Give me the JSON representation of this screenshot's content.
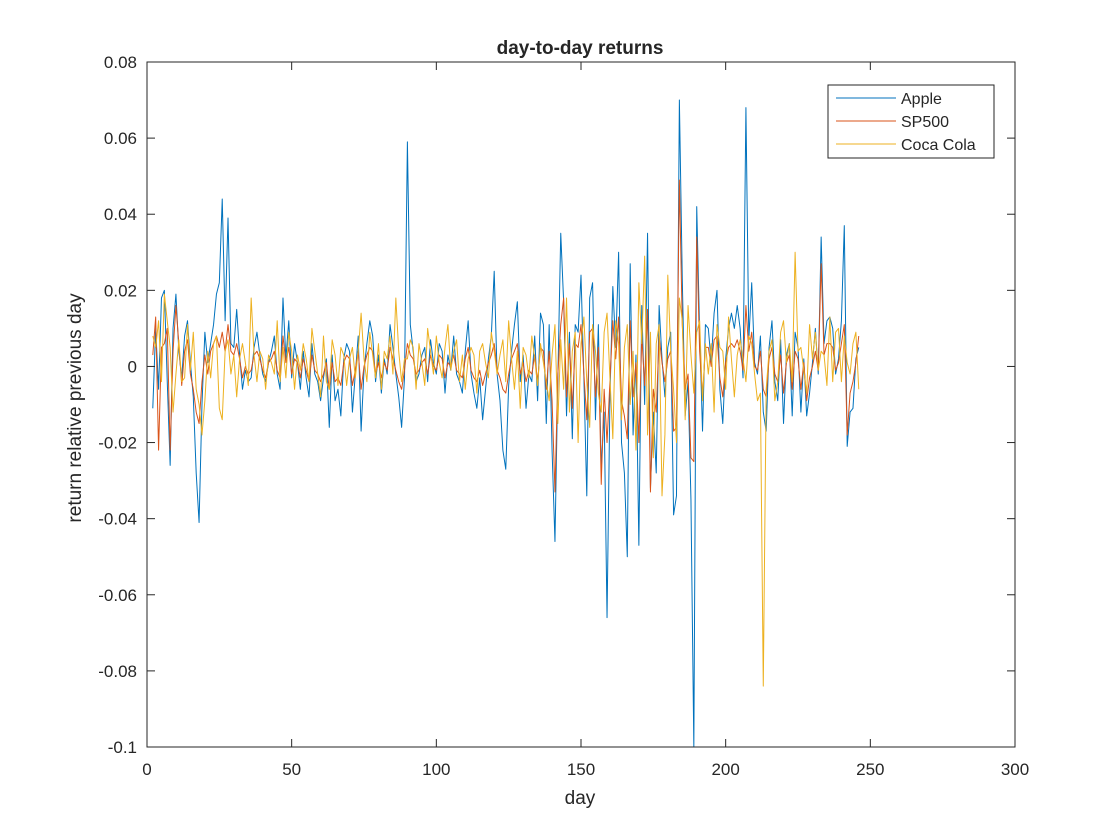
{
  "chart_data": {
    "type": "line",
    "title": "day-to-day returns",
    "xlabel": "day",
    "ylabel": "return relative previous day",
    "xlim": [
      0,
      300
    ],
    "ylim": [
      -0.1,
      0.08
    ],
    "xticks": [
      0,
      50,
      100,
      150,
      200,
      250,
      300
    ],
    "yticks": [
      -0.1,
      -0.08,
      -0.06,
      -0.04,
      -0.02,
      0,
      0.02,
      0.04,
      0.06,
      0.08
    ],
    "xtick_labels": [
      "0",
      "50",
      "100",
      "150",
      "200",
      "250",
      "300"
    ],
    "ytick_labels": [
      "-0.1",
      "-0.08",
      "-0.06",
      "-0.04",
      "-0.02",
      "0",
      "0.02",
      "0.04",
      "0.06",
      "0.08"
    ],
    "grid": false,
    "legend_position": "top-right",
    "x_start": 2,
    "series": [
      {
        "name": "Apple",
        "color": "#0072BD",
        "values": [
          -0.011,
          0.01,
          -0.006,
          0.018,
          0.02,
          -0.004,
          -0.026,
          0.01,
          0.019,
          0.004,
          -0.003,
          0.008,
          0.012,
          0.001,
          -0.008,
          -0.028,
          -0.041,
          -0.01,
          0.009,
          0.001,
          0.006,
          0.011,
          0.019,
          0.022,
          0.044,
          0.012,
          0.039,
          0.006,
          0.005,
          0.015,
          0.003,
          -0.006,
          -0.001,
          -0.004,
          -0.003,
          0.005,
          0.009,
          0.003,
          -0.002,
          -0.004,
          0.001,
          0.004,
          0.008,
          -0.002,
          -0.006,
          0.018,
          0.002,
          0.012,
          -0.003,
          0.006,
          0.001,
          -0.006,
          0.004,
          -0.003,
          -0.008,
          0.006,
          -0.002,
          -0.004,
          -0.009,
          -0.003,
          0.002,
          -0.016,
          0.003,
          -0.009,
          -0.006,
          -0.013,
          0.002,
          0.006,
          0.004,
          -0.012,
          -0.002,
          0.008,
          -0.017,
          -0.001,
          0.006,
          0.012,
          0.008,
          -0.004,
          0.003,
          -0.007,
          0.002,
          -0.002,
          0.011,
          0.005,
          -0.002,
          -0.008,
          -0.016,
          -0.003,
          0.059,
          0.011,
          0.004,
          -0.004,
          -0.002,
          0.003,
          0.005,
          -0.004,
          0.007,
          0.001,
          -0.002,
          0.006,
          0.004,
          -0.007,
          0.003,
          -0.001,
          0.008,
          -0.002,
          -0.004,
          -0.007,
          0.004,
          0.012,
          -0.002,
          -0.007,
          -0.011,
          -0.003,
          -0.014,
          -0.006,
          0.002,
          0.008,
          0.025,
          -0.002,
          -0.009,
          -0.022,
          -0.027,
          -0.005,
          0.004,
          0.011,
          0.017,
          -0.004,
          0.003,
          -0.011,
          -0.002,
          -0.004,
          0.008,
          -0.009,
          0.014,
          0.011,
          -0.015,
          0.011,
          -0.022,
          -0.046,
          -0.003,
          0.035,
          0.017,
          -0.013,
          0.009,
          -0.019,
          0.011,
          0.009,
          0.024,
          -0.003,
          -0.034,
          0.018,
          0.022,
          -0.014,
          0.011,
          -0.027,
          -0.012,
          -0.066,
          -0.008,
          0.021,
          0.005,
          0.03,
          -0.02,
          -0.028,
          -0.05,
          0.027,
          -0.018,
          0.003,
          -0.047,
          0.016,
          -0.01,
          0.035,
          -0.032,
          -0.012,
          -0.028,
          0.016,
          0.002,
          -0.008,
          0.005,
          0.009,
          -0.039,
          -0.034,
          0.07,
          0.023,
          -0.013,
          -0.004,
          -0.035,
          -0.1,
          0.042,
          0.009,
          -0.017,
          0.011,
          0.01,
          0.001,
          0.014,
          0.02,
          -0.006,
          -0.015,
          0.002,
          0.01,
          0.014,
          0.01,
          0.016,
          0.01,
          -0.003,
          0.068,
          0.007,
          0.022,
          0.001,
          -0.002,
          0.008,
          -0.012,
          -0.017,
          0.005,
          0.012,
          -0.004,
          -0.009,
          0.007,
          -0.015,
          0.003,
          0.006,
          -0.013,
          0.009,
          0.005,
          -0.012,
          0.002,
          -0.013,
          -0.007,
          0.001,
          0.01,
          -0.002,
          0.034,
          0.006,
          0.012,
          0.013,
          0.01,
          -0.002,
          0.002,
          0.012,
          0.037,
          -0.021,
          -0.012,
          -0.011,
          0.002,
          0.005
        ]
      },
      {
        "name": "SP500",
        "color": "#D95319",
        "values": [
          0.003,
          0.013,
          -0.022,
          0.005,
          0.006,
          0.01,
          -0.022,
          0.004,
          0.016,
          0.006,
          -0.005,
          0.004,
          0.007,
          -0.002,
          -0.006,
          -0.012,
          -0.015,
          -0.004,
          0.003,
          -0.002,
          0.004,
          0.006,
          0.008,
          0.005,
          0.009,
          0.004,
          0.011,
          0.004,
          0.003,
          0.006,
          0.002,
          -0.003,
          0.0,
          -0.002,
          -0.001,
          0.003,
          0.004,
          0.002,
          -0.001,
          -0.003,
          0.001,
          0.002,
          0.004,
          -0.001,
          -0.003,
          0.008,
          0.001,
          0.005,
          -0.002,
          0.002,
          0.001,
          -0.003,
          0.002,
          -0.001,
          -0.004,
          0.003,
          -0.001,
          -0.002,
          -0.004,
          -0.002,
          0.001,
          -0.006,
          0.001,
          -0.004,
          -0.003,
          -0.005,
          0.001,
          0.003,
          0.002,
          -0.005,
          -0.001,
          0.004,
          -0.006,
          0.0,
          0.003,
          0.005,
          0.004,
          -0.002,
          0.001,
          -0.003,
          0.001,
          -0.001,
          0.005,
          0.002,
          -0.001,
          -0.004,
          -0.006,
          -0.001,
          0.006,
          0.003,
          0.002,
          -0.002,
          -0.001,
          0.001,
          0.002,
          -0.002,
          0.003,
          0.0,
          -0.001,
          0.003,
          0.002,
          -0.003,
          0.001,
          0.0,
          0.003,
          -0.001,
          -0.002,
          -0.003,
          0.002,
          0.005,
          -0.001,
          -0.003,
          -0.004,
          -0.001,
          -0.005,
          -0.002,
          0.001,
          0.003,
          0.006,
          -0.001,
          -0.003,
          -0.006,
          -0.007,
          -0.002,
          0.002,
          0.004,
          0.006,
          -0.002,
          0.001,
          -0.004,
          -0.001,
          -0.002,
          0.003,
          -0.004,
          0.005,
          0.004,
          -0.006,
          0.004,
          -0.009,
          -0.033,
          -0.002,
          0.011,
          0.018,
          -0.008,
          0.006,
          -0.011,
          0.006,
          0.005,
          0.011,
          -0.002,
          -0.014,
          0.009,
          0.01,
          -0.008,
          0.005,
          -0.031,
          -0.006,
          -0.02,
          -0.004,
          0.012,
          0.002,
          0.013,
          -0.009,
          -0.013,
          -0.019,
          0.012,
          -0.008,
          0.001,
          -0.02,
          0.008,
          -0.005,
          0.015,
          -0.033,
          -0.006,
          -0.012,
          0.008,
          0.001,
          -0.004,
          0.002,
          0.004,
          -0.017,
          -0.016,
          0.049,
          0.011,
          -0.006,
          -0.002,
          -0.024,
          -0.025,
          0.034,
          0.004,
          -0.008,
          0.005,
          0.005,
          0.0,
          0.007,
          0.008,
          -0.003,
          -0.008,
          0.001,
          0.005,
          0.006,
          0.005,
          0.007,
          0.004,
          -0.001,
          0.016,
          0.004,
          0.009,
          0.0,
          -0.001,
          0.004,
          -0.006,
          -0.008,
          0.002,
          0.005,
          -0.002,
          -0.004,
          0.003,
          -0.007,
          0.001,
          0.003,
          -0.006,
          0.004,
          0.002,
          -0.006,
          0.001,
          -0.009,
          -0.003,
          0.0,
          0.004,
          -0.001,
          0.027,
          0.003,
          0.006,
          0.006,
          0.005,
          -0.001,
          0.001,
          0.006,
          0.011,
          -0.018,
          -0.007,
          -0.004,
          0.001,
          0.008
        ]
      },
      {
        "name": "Coca Cola",
        "color": "#EDB120",
        "values": [
          0.008,
          0.005,
          0.012,
          -0.004,
          0.019,
          0.012,
          0.005,
          -0.012,
          -0.002,
          0.007,
          -0.004,
          -0.003,
          0.011,
          -0.001,
          0.009,
          -0.006,
          -0.01,
          -0.018,
          -0.009,
          0.004,
          -0.003,
          0.006,
          0.008,
          -0.011,
          -0.014,
          0.004,
          0.007,
          -0.002,
          0.003,
          -0.008,
          0.002,
          0.006,
          0.001,
          -0.005,
          0.018,
          0.003,
          -0.004,
          0.004,
          0.002,
          -0.006,
          0.003,
          0.001,
          -0.002,
          0.012,
          -0.004,
          0.005,
          -0.003,
          0.009,
          0.004,
          -0.006,
          0.003,
          -0.001,
          0.006,
          0.002,
          -0.004,
          0.01,
          0.004,
          -0.002,
          -0.008,
          0.008,
          -0.004,
          -0.006,
          0.007,
          0.003,
          -0.005,
          0.005,
          0.003,
          -0.005,
          0.002,
          0.005,
          -0.003,
          0.004,
          0.014,
          0.002,
          -0.004,
          0.009,
          0.003,
          -0.003,
          0.006,
          -0.006,
          0.004,
          0.002,
          0.008,
          -0.002,
          0.018,
          0.004,
          -0.004,
          0.002,
          0.002,
          0.007,
          0.005,
          -0.006,
          0.006,
          0.001,
          -0.005,
          0.01,
          0.004,
          -0.002,
          0.008,
          0.001,
          -0.003,
          0.005,
          0.011,
          -0.001,
          0.004,
          0.007,
          -0.004,
          0.003,
          -0.006,
          0.002,
          0.005,
          0.003,
          -0.007,
          0.004,
          0.006,
          0.001,
          -0.003,
          0.009,
          0.004,
          -0.002,
          0.003,
          0.007,
          -0.004,
          0.012,
          0.002,
          -0.006,
          0.004,
          -0.011,
          0.005,
          0.003,
          -0.003,
          0.008,
          0.002,
          -0.005,
          0.006,
          0.001,
          -0.004,
          -0.009,
          0.003,
          0.011,
          -0.015,
          0.007,
          -0.006,
          0.018,
          -0.012,
          0.004,
          0.009,
          -0.02,
          0.006,
          0.013,
          -0.004,
          -0.016,
          0.011,
          0.004,
          -0.007,
          -0.012,
          0.009,
          0.014,
          -0.003,
          -0.019,
          0.012,
          0.006,
          -0.014,
          0.005,
          0.011,
          -0.01,
          0.004,
          -0.022,
          0.022,
          0.006,
          0.029,
          -0.018,
          0.009,
          -0.024,
          0.006,
          0.011,
          -0.034,
          -0.018,
          0.024,
          0.004,
          -0.006,
          -0.02,
          0.018,
          0.012,
          -0.014,
          0.016,
          0.003,
          -0.007,
          0.009,
          0.012,
          -0.009,
          0.006,
          -0.002,
          0.006,
          -0.012,
          0.011,
          0.005,
          0.004,
          -0.006,
          0.013,
          0.002,
          -0.008,
          0.003,
          0.007,
          0.002,
          -0.004,
          0.008,
          0.006,
          -0.002,
          -0.009,
          -0.007,
          -0.084,
          -0.006,
          0.004,
          0.007,
          -0.009,
          -0.004,
          0.009,
          0.012,
          0.001,
          0.006,
          -0.004,
          0.03,
          0.004,
          0.005,
          -0.001,
          -0.007,
          0.011,
          0.002,
          0.009,
          -0.001,
          0.004,
          0.003,
          -0.005,
          0.013,
          -0.004,
          0.009,
          0.01,
          -0.004,
          0.008,
          0.001,
          -0.002,
          0.006,
          0.009,
          -0.006
        ]
      }
    ]
  }
}
